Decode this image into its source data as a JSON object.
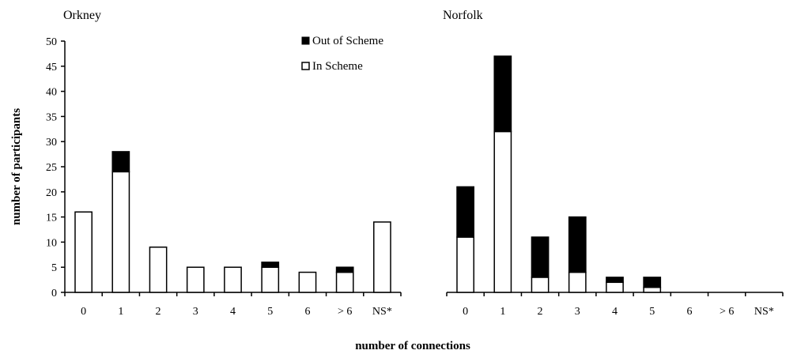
{
  "xlabel": "number of connections",
  "ylabel": "number of participants",
  "legend": {
    "items": [
      {
        "label": "Out of Scheme",
        "color": "#000000"
      },
      {
        "label": "In Scheme",
        "color": "#ffffff"
      }
    ]
  },
  "chart_data": [
    {
      "type": "bar",
      "stacked": true,
      "title": "Orkney",
      "categories": [
        "0",
        "1",
        "2",
        "3",
        "4",
        "5",
        "6",
        "> 6",
        "NS*"
      ],
      "series": [
        {
          "name": "In Scheme",
          "color": "#ffffff",
          "values": [
            16,
            24,
            9,
            5,
            5,
            5,
            4,
            4,
            14
          ]
        },
        {
          "name": "Out of Scheme",
          "color": "#000000",
          "values": [
            0,
            4,
            0,
            0,
            0,
            1,
            0,
            1,
            0
          ]
        }
      ],
      "ylim": [
        0,
        50
      ],
      "yticks": [
        0,
        5,
        10,
        15,
        20,
        25,
        30,
        35,
        40,
        45,
        50
      ],
      "ylabel": "number of participants",
      "legend": "top-right",
      "grid": false
    },
    {
      "type": "bar",
      "stacked": true,
      "title": "Norfolk",
      "categories": [
        "0",
        "1",
        "2",
        "3",
        "4",
        "5",
        "6",
        "> 6",
        "NS*"
      ],
      "series": [
        {
          "name": "In Scheme",
          "color": "#ffffff",
          "values": [
            11,
            32,
            3,
            4,
            2,
            1,
            0,
            0,
            0
          ]
        },
        {
          "name": "Out of Scheme",
          "color": "#000000",
          "values": [
            10,
            15,
            8,
            11,
            1,
            2,
            0,
            0,
            0
          ]
        }
      ],
      "ylim": [
        0,
        50
      ],
      "grid": false
    }
  ]
}
